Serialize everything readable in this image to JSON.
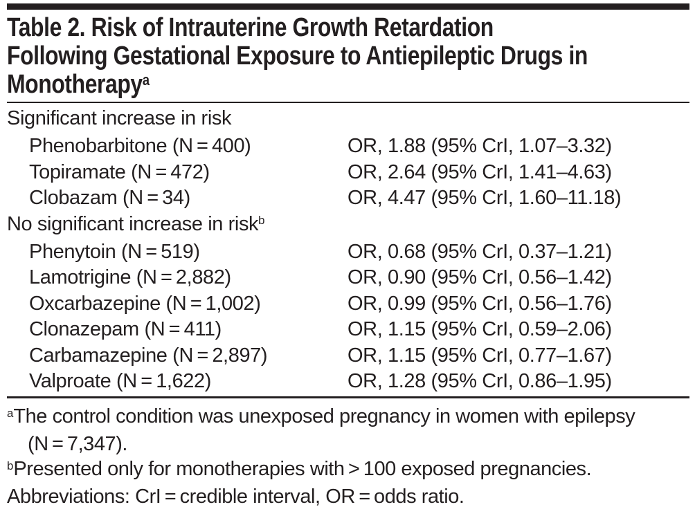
{
  "colors": {
    "ink": "#231f20",
    "background": "#ffffff"
  },
  "title": {
    "lines": [
      "Table 2. Risk of Intrauterine Growth Retardation",
      "Following Gestational Exposure to Antiepileptic Drugs in",
      "Monotherapy"
    ],
    "superscript": "a"
  },
  "table": {
    "rows": [
      {
        "label": "Significant increase in risk",
        "sup": "",
        "value": "",
        "indent": false
      },
      {
        "label": "Phenobarbitone (N = 400)",
        "sup": "",
        "value": "OR, 1.88 (95% CrI, 1.07–3.32)",
        "indent": true
      },
      {
        "label": "Topiramate (N = 472)",
        "sup": "",
        "value": "OR, 2.64 (95% CrI, 1.41–4.63)",
        "indent": true
      },
      {
        "label": "Clobazam (N = 34)",
        "sup": "",
        "value": "OR, 4.47 (95% CrI, 1.60–11.18)",
        "indent": true
      },
      {
        "label": "No significant increase in risk",
        "sup": "b",
        "value": "",
        "indent": false
      },
      {
        "label": "Phenytoin (N = 519)",
        "sup": "",
        "value": "OR, 0.68 (95% CrI, 0.37–1.21)",
        "indent": true
      },
      {
        "label": "Lamotrigine (N = 2,882)",
        "sup": "",
        "value": "OR, 0.90 (95% CrI, 0.56–1.42)",
        "indent": true
      },
      {
        "label": "Oxcarbazepine (N = 1,002)",
        "sup": "",
        "value": "OR, 0.99 (95% CrI, 0.56–1.76)",
        "indent": true
      },
      {
        "label": "Clonazepam (N = 411)",
        "sup": "",
        "value": "OR, 1.15 (95% CrI, 0.59–2.06)",
        "indent": true
      },
      {
        "label": "Carbamazepine (N = 2,897)",
        "sup": "",
        "value": "OR, 1.15 (95% CrI, 0.77–1.67)",
        "indent": true
      },
      {
        "label": "Valproate (N = 1,622)",
        "sup": "",
        "value": "OR, 1.28 (95% CrI, 0.86–1.95)",
        "indent": true
      }
    ]
  },
  "footnotes": [
    {
      "sup": "a",
      "line1": "The control condition was unexposed pregnancy in women with epilepsy",
      "line2": "(N = 7,347)."
    },
    {
      "sup": "b",
      "line1": "Presented only for monotherapies with > 100 exposed pregnancies."
    },
    {
      "sup": "",
      "line1": "Abbreviations: CrI = credible interval, OR = odds ratio."
    }
  ]
}
